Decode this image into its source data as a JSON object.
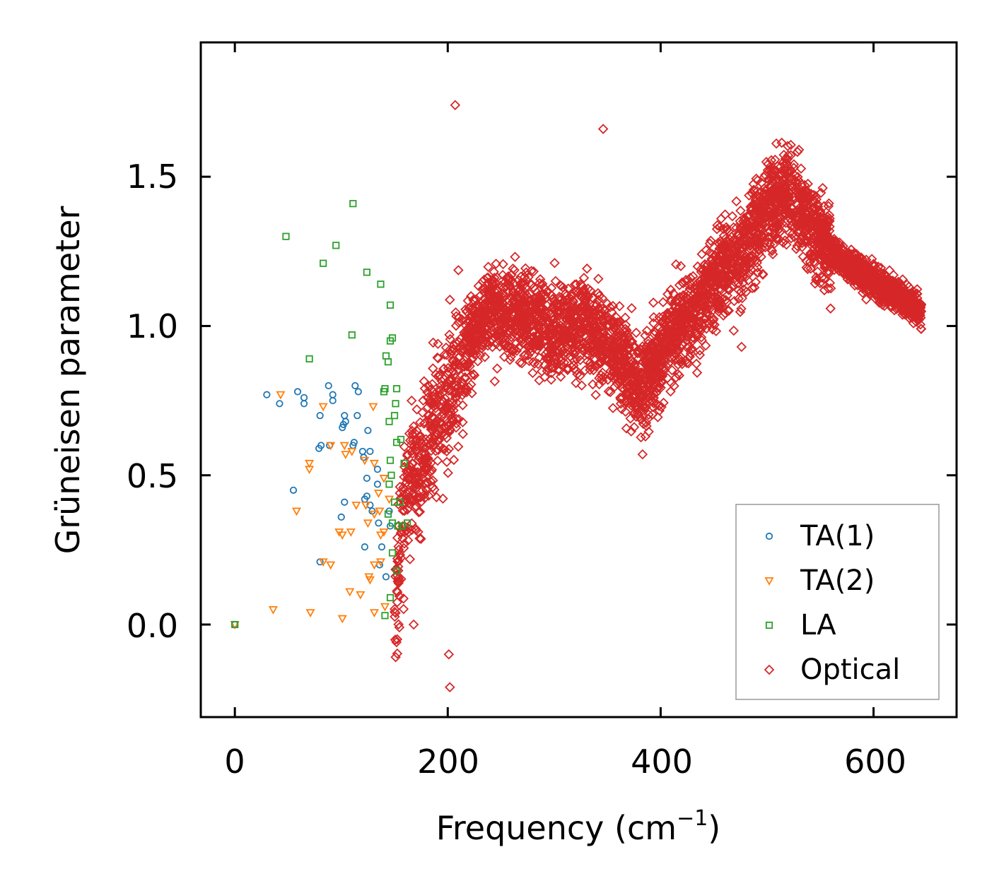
{
  "chart_data": {
    "type": "scatter",
    "title": "",
    "xlabel": "Frequency (cm",
    "xlabel_sup": "−1",
    "xlabel_close": ")",
    "ylabel": "Grüneisen parameter",
    "xlim": [
      -32,
      678
    ],
    "ylim": [
      -0.31,
      1.95
    ],
    "x_ticks": [
      0,
      200,
      400,
      600
    ],
    "x_tick_labels": [
      "0",
      "200",
      "400",
      "600"
    ],
    "y_ticks": [
      0.0,
      0.5,
      1.0,
      1.5
    ],
    "y_tick_labels": [
      "0.0",
      "0.5",
      "1.0",
      "1.5"
    ],
    "grid": false,
    "legend_position": "lower-right",
    "series": [
      {
        "name": "TA(1)",
        "marker": "circle",
        "color": "#1f77b4",
        "points": [
          [
            0,
            0.0
          ],
          [
            30,
            0.77
          ],
          [
            42,
            0.74
          ],
          [
            59,
            0.78
          ],
          [
            65,
            0.76
          ],
          [
            65,
            0.74
          ],
          [
            88,
            0.8
          ],
          [
            92,
            0.77
          ],
          [
            92,
            0.75
          ],
          [
            113,
            0.8
          ],
          [
            116,
            0.78
          ],
          [
            80,
            0.7
          ],
          [
            103,
            0.7
          ],
          [
            104,
            0.68
          ],
          [
            102,
            0.67
          ],
          [
            115,
            0.7
          ],
          [
            125,
            0.65
          ],
          [
            101,
            0.66
          ],
          [
            111,
            0.6
          ],
          [
            112,
            0.61
          ],
          [
            81,
            0.6
          ],
          [
            79,
            0.59
          ],
          [
            89,
            0.6
          ],
          [
            120,
            0.58
          ],
          [
            127,
            0.58
          ],
          [
            121,
            0.56
          ],
          [
            134,
            0.52
          ],
          [
            124,
            0.49
          ],
          [
            134,
            0.47
          ],
          [
            55,
            0.45
          ],
          [
            103,
            0.41
          ],
          [
            122,
            0.42
          ],
          [
            124,
            0.43
          ],
          [
            127,
            0.4
          ],
          [
            129,
            0.38
          ],
          [
            145,
            0.38
          ],
          [
            100,
            0.36
          ],
          [
            135,
            0.34
          ],
          [
            146,
            0.33
          ],
          [
            122,
            0.26
          ],
          [
            138,
            0.26
          ],
          [
            80,
            0.21
          ],
          [
            136,
            0.2
          ],
          [
            142,
            0.16
          ]
        ]
      },
      {
        "name": "TA(2)",
        "marker": "triangle-down",
        "color": "#ff7f0e",
        "points": [
          [
            0,
            0.0
          ],
          [
            43,
            0.77
          ],
          [
            83,
            0.73
          ],
          [
            130,
            0.73
          ],
          [
            70,
            0.54
          ],
          [
            70,
            0.52
          ],
          [
            90,
            0.6
          ],
          [
            103,
            0.6
          ],
          [
            110,
            0.58
          ],
          [
            104,
            0.57
          ],
          [
            122,
            0.55
          ],
          [
            131,
            0.54
          ],
          [
            140,
            0.49
          ],
          [
            135,
            0.44
          ],
          [
            145,
            0.42
          ],
          [
            58,
            0.38
          ],
          [
            114,
            0.4
          ],
          [
            123,
            0.4
          ],
          [
            131,
            0.37
          ],
          [
            136,
            0.38
          ],
          [
            125,
            0.34
          ],
          [
            98,
            0.31
          ],
          [
            101,
            0.3
          ],
          [
            109,
            0.31
          ],
          [
            137,
            0.3
          ],
          [
            140,
            0.31
          ],
          [
            83,
            0.21
          ],
          [
            90,
            0.2
          ],
          [
            131,
            0.2
          ],
          [
            137,
            0.21
          ],
          [
            126,
            0.16
          ],
          [
            127,
            0.15
          ],
          [
            108,
            0.11
          ],
          [
            118,
            0.1
          ],
          [
            101,
            0.02
          ],
          [
            71,
            0.04
          ],
          [
            36,
            0.05
          ],
          [
            131,
            0.04
          ],
          [
            141,
            0.06
          ]
        ]
      },
      {
        "name": "LA",
        "marker": "square",
        "color": "#2ca02c",
        "points": [
          [
            0,
            0.0
          ],
          [
            48,
            1.3
          ],
          [
            111,
            1.41
          ],
          [
            95,
            1.27
          ],
          [
            83,
            1.21
          ],
          [
            124,
            1.18
          ],
          [
            137,
            1.14
          ],
          [
            146,
            1.07
          ],
          [
            110,
            0.97
          ],
          [
            148,
            0.96
          ],
          [
            146,
            0.95
          ],
          [
            70,
            0.89
          ],
          [
            142,
            0.9
          ],
          [
            144,
            0.88
          ],
          [
            141,
            0.79
          ],
          [
            152,
            0.79
          ],
          [
            140,
            0.78
          ],
          [
            151,
            0.74
          ],
          [
            150,
            0.7
          ],
          [
            145,
            0.68
          ],
          [
            152,
            0.61
          ],
          [
            156,
            0.62
          ],
          [
            146,
            0.55
          ],
          [
            159,
            0.54
          ],
          [
            147,
            0.5
          ],
          [
            145,
            0.47
          ],
          [
            150,
            0.41
          ],
          [
            155,
            0.41
          ],
          [
            144,
            0.37
          ],
          [
            148,
            0.34
          ],
          [
            153,
            0.33
          ],
          [
            157,
            0.33
          ],
          [
            162,
            0.34
          ],
          [
            148,
            0.24
          ],
          [
            152,
            0.18
          ],
          [
            146,
            0.09
          ],
          [
            141,
            0.03
          ]
        ]
      },
      {
        "name": "Optical",
        "marker": "diamond",
        "color": "#d62728",
        "generated": true,
        "band_outline": [
          [
            150,
            0.05
          ],
          [
            160,
            0.45
          ],
          [
            175,
            0.55
          ],
          [
            190,
            0.68
          ],
          [
            205,
            0.8
          ],
          [
            215,
            0.9
          ],
          [
            225,
            1.0
          ],
          [
            240,
            1.05
          ],
          [
            260,
            1.05
          ],
          [
            280,
            1.02
          ],
          [
            300,
            1.0
          ],
          [
            330,
            1.0
          ],
          [
            360,
            0.9
          ],
          [
            380,
            0.8
          ],
          [
            400,
            0.9
          ],
          [
            420,
            1.0
          ],
          [
            440,
            1.1
          ],
          [
            460,
            1.2
          ],
          [
            480,
            1.25
          ],
          [
            500,
            1.4
          ],
          [
            520,
            1.45
          ],
          [
            540,
            1.35
          ],
          [
            560,
            1.25
          ],
          [
            600,
            1.15
          ],
          [
            645,
            1.05
          ]
        ],
        "outliers": [
          [
            207,
            1.74
          ],
          [
            346,
            1.66
          ],
          [
            202,
            -0.21
          ],
          [
            476,
            0.93
          ],
          [
            588,
            1.21
          ],
          [
            168,
            0.0
          ],
          [
            201,
            -0.1
          ],
          [
            383,
            0.57
          ]
        ]
      }
    ]
  }
}
